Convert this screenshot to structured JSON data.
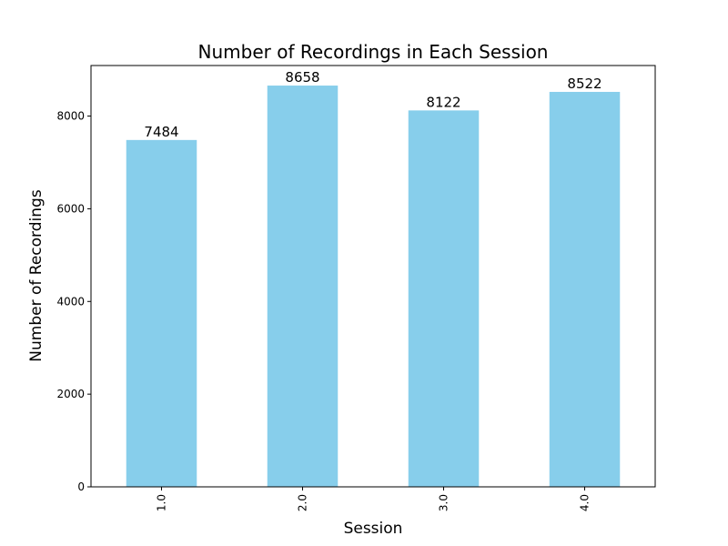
{
  "chart_data": {
    "type": "bar",
    "title": "Number of Recordings in Each Session",
    "xlabel": "Session",
    "ylabel": "Number of Recordings",
    "categories": [
      "1.0",
      "2.0",
      "3.0",
      "4.0"
    ],
    "values": [
      7484,
      8658,
      8122,
      8522
    ],
    "data_labels": [
      "7484",
      "8658",
      "8122",
      "8522"
    ],
    "ylim": [
      0,
      9091
    ],
    "yticks": [
      0,
      2000,
      4000,
      6000,
      8000
    ],
    "ytick_labels": [
      "0",
      "2000",
      "4000",
      "6000",
      "8000"
    ],
    "bar_color": "#87CEEB",
    "grid": false,
    "legend": "none",
    "xtick_rotation": "vertical"
  }
}
